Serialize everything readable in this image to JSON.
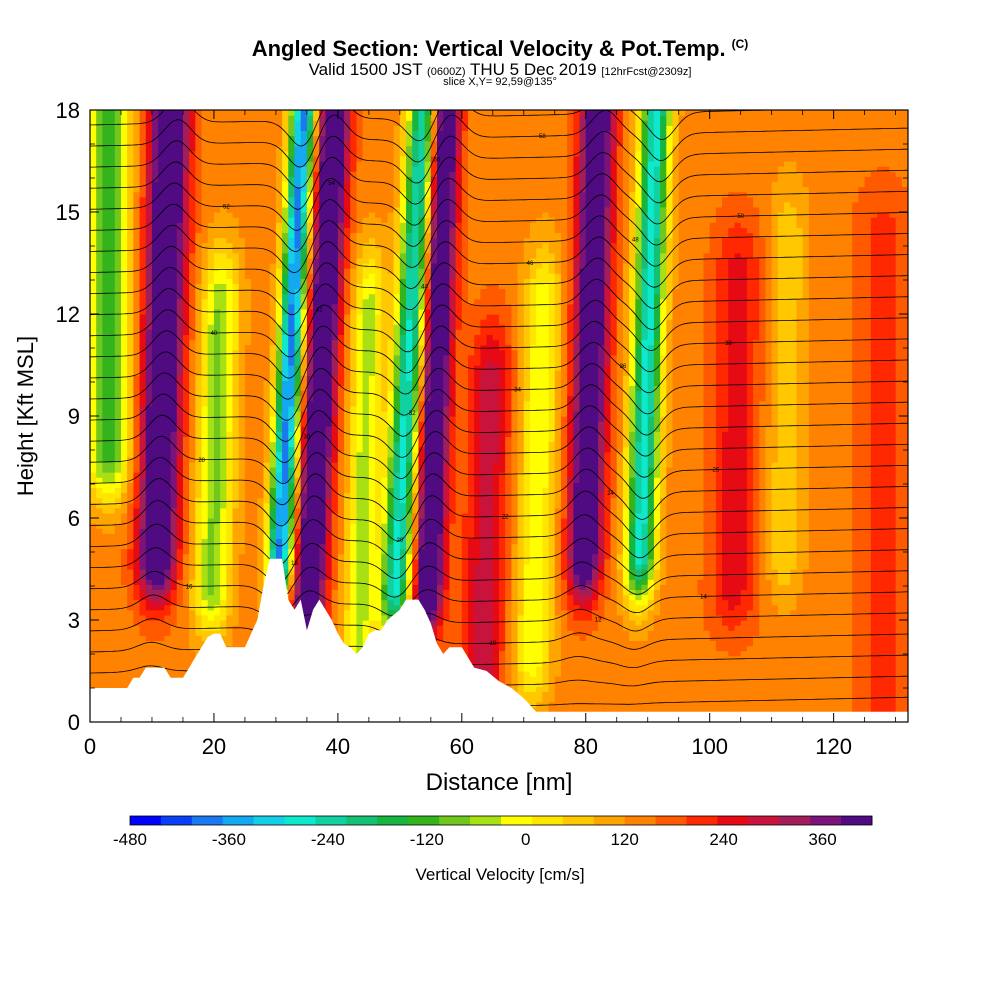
{
  "titles": {
    "main": "Angled Section: Vertical Velocity & Pot.Temp.",
    "copyright": "(C)",
    "valid_prefix": "Valid 1500 JST",
    "valid_z": "(0600Z)",
    "valid_date": "THU 5 Dec 2019",
    "forecast": "[12hrFcst@2309z]",
    "slice": "slice X,Y= 92,59@135°"
  },
  "chart_data": {
    "type": "heatmap",
    "xlabel": "Distance [nm]",
    "ylabel": "Height [Kft MSL]",
    "xlim": [
      0,
      132
    ],
    "ylim": [
      0,
      18
    ],
    "xticks": [
      0,
      20,
      40,
      60,
      80,
      100,
      120
    ],
    "yticks": [
      0,
      3,
      6,
      9,
      12,
      15,
      18
    ],
    "colorbar": {
      "label": "Vertical Velocity [cm/s]",
      "min": -480,
      "max": 420,
      "step": 30,
      "tick_values": [
        -480,
        -360,
        -240,
        -120,
        0,
        120,
        240,
        360
      ],
      "colors": [
        "#0000ff",
        "#0a40f5",
        "#1a78f0",
        "#14a8f0",
        "#14d0e6",
        "#0ee8cc",
        "#10d2a0",
        "#14c074",
        "#18b440",
        "#34b41c",
        "#70c81c",
        "#a8e014",
        "#ffff00",
        "#ffe600",
        "#ffc800",
        "#ffa500",
        "#ff8200",
        "#ff5a00",
        "#ff2800",
        "#e60a14",
        "#c8143c",
        "#a01e5a",
        "#7a1478",
        "#500a82"
      ]
    },
    "terrain_kft": [
      [
        0,
        1.0
      ],
      [
        3,
        1.0
      ],
      [
        6,
        1.0
      ],
      [
        7,
        1.3
      ],
      [
        8,
        1.3
      ],
      [
        9,
        1.6
      ],
      [
        12,
        1.6
      ],
      [
        13,
        1.3
      ],
      [
        15,
        1.3
      ],
      [
        16,
        1.6
      ],
      [
        17,
        1.9
      ],
      [
        18,
        2.2
      ],
      [
        19,
        2.5
      ],
      [
        20,
        2.6
      ],
      [
        21,
        2.6
      ],
      [
        22,
        2.2
      ],
      [
        25,
        2.2
      ],
      [
        26,
        2.6
      ],
      [
        27,
        3.0
      ],
      [
        28,
        4.0
      ],
      [
        29,
        4.8
      ],
      [
        31,
        4.8
      ],
      [
        32,
        3.6
      ],
      [
        33,
        3.3
      ],
      [
        34,
        3.6
      ],
      [
        35,
        2.7
      ],
      [
        36,
        3.3
      ],
      [
        37,
        3.6
      ],
      [
        38,
        3.3
      ],
      [
        39,
        3.0
      ],
      [
        40,
        2.6
      ],
      [
        41,
        2.3
      ],
      [
        42,
        2.2
      ],
      [
        43,
        2.0
      ],
      [
        44,
        2.2
      ],
      [
        45,
        2.6
      ],
      [
        46,
        2.7
      ],
      [
        47,
        2.7
      ],
      [
        48,
        3.0
      ],
      [
        50,
        3.3
      ],
      [
        51,
        3.6
      ],
      [
        53,
        3.6
      ],
      [
        54,
        3.3
      ],
      [
        55,
        2.9
      ],
      [
        56,
        2.3
      ],
      [
        57,
        2.0
      ],
      [
        58,
        2.2
      ],
      [
        59,
        2.2
      ],
      [
        60,
        2.2
      ],
      [
        61,
        1.9
      ],
      [
        62,
        1.6
      ],
      [
        64,
        1.5
      ],
      [
        66,
        1.2
      ],
      [
        68,
        1.0
      ],
      [
        70,
        0.7
      ],
      [
        72,
        0.3
      ],
      [
        132,
        0.3
      ]
    ],
    "vv_cells": [
      {
        "x": 11,
        "peak": 300,
        "top": 18,
        "bottom": 5,
        "width": 3.2,
        "tilt": 0.1
      },
      {
        "x": 36,
        "peak": 300,
        "top": 18,
        "bottom": 3,
        "width": 2.6,
        "tilt": 0.18
      },
      {
        "x": 55,
        "peak": 300,
        "top": 18,
        "bottom": 4,
        "width": 2.4,
        "tilt": 0.12
      },
      {
        "x": 80,
        "peak": 280,
        "top": 18,
        "bottom": 5,
        "width": 2.8,
        "tilt": 0.1
      },
      {
        "x": 64,
        "peak": 120,
        "top": 10,
        "bottom": 1,
        "width": 3.5,
        "tilt": 0.1
      },
      {
        "x": 104,
        "peak": 90,
        "top": 13,
        "bottom": 4,
        "width": 4.0,
        "tilt": 0.05
      },
      {
        "x": 128,
        "peak": 60,
        "top": 14,
        "bottom": 1,
        "width": 4.5,
        "tilt": 0.0
      },
      {
        "x": 31,
        "peak": -420,
        "top": 18,
        "bottom": 5,
        "width": 2.0,
        "tilt": 0.18
      },
      {
        "x": 50,
        "peak": -330,
        "top": 18,
        "bottom": 4,
        "width": 2.4,
        "tilt": 0.2
      },
      {
        "x": 89,
        "peak": -330,
        "top": 18,
        "bottom": 5,
        "width": 2.4,
        "tilt": 0.12
      },
      {
        "x": 3,
        "peak": -210,
        "top": 18,
        "bottom": 8,
        "width": 3.5,
        "tilt": 0.0
      },
      {
        "x": 20,
        "peak": -170,
        "top": 12,
        "bottom": 4,
        "width": 3.0,
        "tilt": 0.1
      },
      {
        "x": 44,
        "peak": -150,
        "top": 12,
        "bottom": 2,
        "width": 2.5,
        "tilt": 0.1
      },
      {
        "x": 72,
        "peak": -130,
        "top": 12,
        "bottom": 2,
        "width": 3.0,
        "tilt": 0.1
      },
      {
        "x": 112,
        "peak": -70,
        "top": 14,
        "bottom": 5,
        "width": 3.0,
        "tilt": 0.05
      }
    ],
    "isentropes_C": [
      4,
      6,
      8,
      10,
      12,
      14,
      16,
      18,
      20,
      22,
      24,
      26,
      28,
      30,
      32,
      34,
      36,
      38,
      40,
      42,
      44,
      46,
      48,
      50,
      52,
      54,
      56,
      58,
      60
    ]
  }
}
